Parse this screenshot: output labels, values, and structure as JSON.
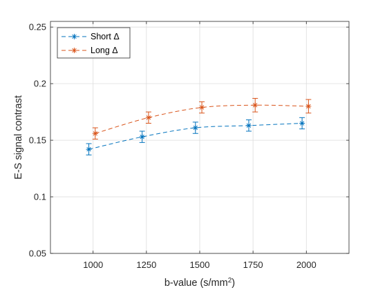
{
  "chart_data": {
    "type": "line",
    "title": "",
    "xlabel": "b-value (s/mm",
    "xlabel_sup": "2",
    "xlabel_close": ")",
    "ylabel": "E-S signal contrast",
    "xlim": [
      800,
      2200
    ],
    "ylim": [
      0.05,
      0.255
    ],
    "xticks": [
      1000,
      1250,
      1500,
      1750,
      2000
    ],
    "xtick_labels": [
      "1000",
      "1250",
      "1500",
      "1750",
      "2000"
    ],
    "yticks": [
      0.05,
      0.1,
      0.15,
      0.2,
      0.25
    ],
    "ytick_labels": [
      "0.05",
      "0.1",
      "0.15",
      "0.2",
      "0.25"
    ],
    "grid": true,
    "legend_position": "top-left",
    "series": [
      {
        "name": "Short Δ",
        "color": "#0072BD",
        "marker": "asterisk",
        "line_style": "dashed",
        "x": [
          980,
          1230,
          1480,
          1730,
          1980
        ],
        "y": [
          0.142,
          0.153,
          0.161,
          0.163,
          0.165
        ],
        "err": [
          0.005,
          0.005,
          0.005,
          0.005,
          0.005
        ]
      },
      {
        "name": "Long Δ",
        "color": "#D95319",
        "marker": "asterisk",
        "line_style": "dashed",
        "x": [
          1010,
          1260,
          1510,
          1760,
          2010
        ],
        "y": [
          0.156,
          0.17,
          0.179,
          0.181,
          0.18
        ],
        "err": [
          0.005,
          0.005,
          0.005,
          0.006,
          0.006
        ]
      }
    ]
  }
}
